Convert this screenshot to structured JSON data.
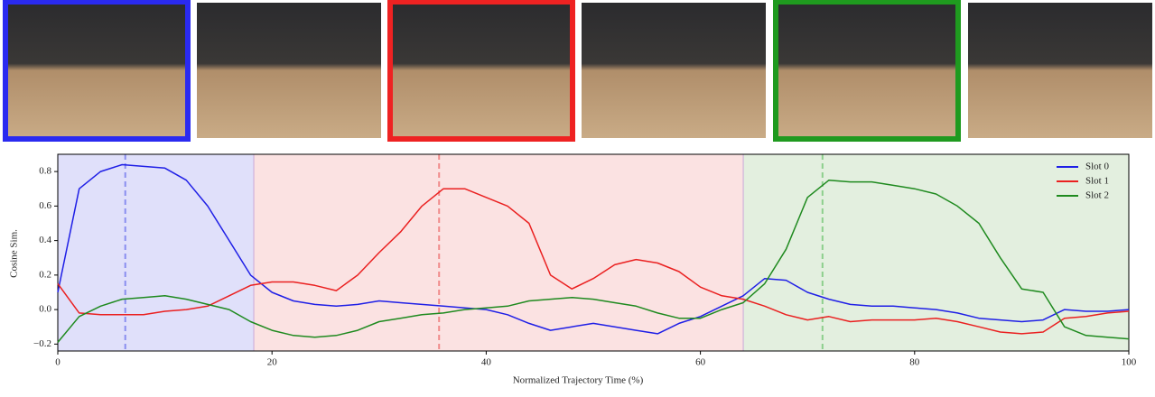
{
  "chart_data": {
    "type": "line",
    "xlabel": "Normalized Trajectory Time (%)",
    "ylabel": "Cosine Sim.",
    "xlim": [
      0,
      100
    ],
    "ylim": [
      -0.24,
      0.9
    ],
    "xticks": [
      0,
      20,
      40,
      60,
      80,
      100
    ],
    "yticks": [
      {
        "value": -0.2,
        "label": "−0.2"
      },
      {
        "value": 0,
        "label": "0.0"
      },
      0.2,
      0.4,
      0.6,
      0.8
    ],
    "legend": "upper right",
    "regions": [
      {
        "start": 0,
        "end": 18.3,
        "color": "#e0e0fa"
      },
      {
        "start": 18.3,
        "end": 64,
        "color": "#fbe2e2"
      },
      {
        "start": 64,
        "end": 100,
        "color": "#e3efdf"
      }
    ],
    "markers": [
      {
        "x": 6.3,
        "color": "#8a8ef0"
      },
      {
        "x": 35.6,
        "color": "#f08a8a"
      },
      {
        "x": 71.4,
        "color": "#8ccf8c"
      }
    ],
    "x": [
      0,
      2,
      4,
      6,
      8,
      10,
      12,
      14,
      16,
      18,
      20,
      22,
      24,
      26,
      28,
      30,
      32,
      34,
      36,
      38,
      40,
      42,
      44,
      46,
      48,
      50,
      52,
      54,
      56,
      58,
      60,
      62,
      64,
      66,
      68,
      70,
      72,
      74,
      76,
      78,
      80,
      82,
      84,
      86,
      88,
      90,
      92,
      94,
      96,
      98,
      100
    ],
    "series": [
      {
        "name": "Slot 0",
        "color": "#1f1fe6",
        "values": [
          0.1,
          0.7,
          0.8,
          0.84,
          0.83,
          0.82,
          0.75,
          0.6,
          0.4,
          0.2,
          0.1,
          0.05,
          0.03,
          0.02,
          0.03,
          0.05,
          0.04,
          0.03,
          0.02,
          0.01,
          0.0,
          -0.03,
          -0.08,
          -0.12,
          -0.1,
          -0.08,
          -0.1,
          -0.12,
          -0.14,
          -0.08,
          -0.04,
          0.02,
          0.08,
          0.18,
          0.17,
          0.1,
          0.06,
          0.03,
          0.02,
          0.02,
          0.01,
          0.0,
          -0.02,
          -0.05,
          -0.06,
          -0.07,
          -0.06,
          0.0,
          -0.01,
          -0.01,
          0.0
        ]
      },
      {
        "name": "Slot 1",
        "color": "#ea2020",
        "values": [
          0.15,
          -0.02,
          -0.03,
          -0.03,
          -0.03,
          -0.01,
          0.0,
          0.02,
          0.08,
          0.14,
          0.16,
          0.16,
          0.14,
          0.11,
          0.2,
          0.33,
          0.45,
          0.6,
          0.7,
          0.7,
          0.65,
          0.6,
          0.5,
          0.2,
          0.12,
          0.18,
          0.26,
          0.29,
          0.27,
          0.22,
          0.13,
          0.08,
          0.06,
          0.02,
          -0.03,
          -0.06,
          -0.04,
          -0.07,
          -0.06,
          -0.06,
          -0.06,
          -0.05,
          -0.07,
          -0.1,
          -0.13,
          -0.14,
          -0.13,
          -0.05,
          -0.04,
          -0.02,
          -0.01
        ]
      },
      {
        "name": "Slot 2",
        "color": "#1f8a1f",
        "values": [
          -0.19,
          -0.04,
          0.02,
          0.06,
          0.07,
          0.08,
          0.06,
          0.03,
          0.0,
          -0.07,
          -0.12,
          -0.15,
          -0.16,
          -0.15,
          -0.12,
          -0.07,
          -0.05,
          -0.03,
          -0.02,
          0.0,
          0.01,
          0.02,
          0.05,
          0.06,
          0.07,
          0.06,
          0.04,
          0.02,
          -0.02,
          -0.05,
          -0.05,
          0.0,
          0.04,
          0.15,
          0.35,
          0.65,
          0.75,
          0.74,
          0.74,
          0.72,
          0.7,
          0.67,
          0.6,
          0.5,
          0.3,
          0.12,
          0.1,
          -0.1,
          -0.15,
          -0.16,
          -0.17
        ]
      }
    ]
  }
}
